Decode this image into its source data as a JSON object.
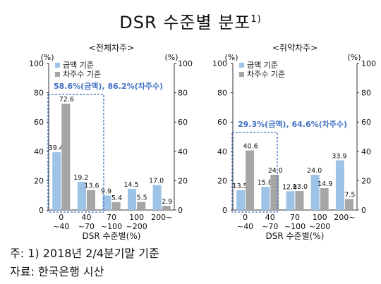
{
  "title": {
    "main": "DSR 수준별 분포",
    "sup": "1)"
  },
  "notes": {
    "line1": "주: 1) 2018년 2/4분기말 기준",
    "line2": "자료: 한국은행 시산"
  },
  "colors": {
    "amount": "#9dc3e6",
    "borrowers": "#a6a6a6",
    "annotation": "#4472c4"
  },
  "chart_data": [
    {
      "type": "bar",
      "title": "<전체차주>",
      "xlabel": "DSR 수준별(%)",
      "ylabel_left": "(%)",
      "ylabel_right": "(%)",
      "ylim": [
        0,
        100
      ],
      "yticks": [
        0,
        20,
        40,
        60,
        80,
        100
      ],
      "categories": [
        [
          "0",
          "~40"
        ],
        [
          "40",
          "~70"
        ],
        [
          "70",
          "~100"
        ],
        [
          "100",
          "~200"
        ],
        [
          "200~",
          ""
        ]
      ],
      "series": [
        {
          "name": "금액 기준",
          "values": [
            39.4,
            19.2,
            9.9,
            14.5,
            17.0
          ]
        },
        {
          "name": "차주수 기준",
          "values": [
            72.6,
            13.6,
            5.4,
            5.5,
            2.9
          ]
        }
      ],
      "value_labels": [
        [
          "39.4",
          "19.2",
          "9.9",
          "14.5",
          "17.0"
        ],
        [
          "72.6",
          "13.6",
          "5.4",
          "5.5",
          "2.9"
        ]
      ],
      "annotation": "58.6%(금액), 86.2%(차주수)"
    },
    {
      "type": "bar",
      "title": "<취약차주>",
      "xlabel": "DSR 수준별(%)",
      "ylabel_left": "(%)",
      "ylabel_right": "(%)",
      "ylim": [
        0,
        100
      ],
      "yticks": [
        0,
        20,
        40,
        60,
        80,
        100
      ],
      "categories": [
        [
          "0",
          "~40"
        ],
        [
          "40",
          "~70"
        ],
        [
          "70",
          "~100"
        ],
        [
          "100",
          "~200"
        ],
        [
          "200~",
          ""
        ]
      ],
      "series": [
        {
          "name": "금액 기준",
          "values": [
            13.5,
            15.8,
            12.8,
            24.0,
            33.9
          ]
        },
        {
          "name": "차주수 기준",
          "values": [
            40.6,
            24.0,
            13.0,
            14.9,
            7.5
          ]
        }
      ],
      "value_labels": [
        [
          "13.5",
          "15.8",
          "12.8",
          "24.0",
          "33.9"
        ],
        [
          "40.6",
          "24.0",
          "13.0",
          "14.9",
          "7.5"
        ]
      ],
      "annotation": "29.3%(금액), 64.6%(차주수)"
    }
  ]
}
